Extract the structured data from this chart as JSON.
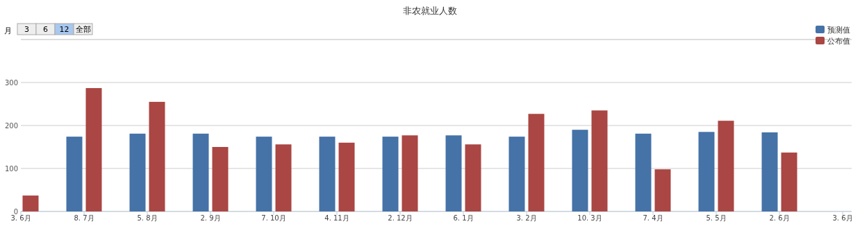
{
  "chart_data": {
    "type": "bar",
    "title": "非农就业人数",
    "categories": [
      "3. 6月",
      "8. 7月",
      "5. 8月",
      "2. 9月",
      "7. 10月",
      "4. 11月",
      "2. 12月",
      "6. 1月",
      "3. 2月",
      "10. 3月",
      "7. 4月",
      "5. 5月",
      "2. 6月",
      "3. 6月"
    ],
    "series": [
      {
        "name": "预测值",
        "color": "#4572a7",
        "values": [
          null,
          174,
          181,
          181,
          174,
          174,
          174,
          177,
          174,
          190,
          181,
          185,
          184,
          null
        ]
      },
      {
        "name": "公布值",
        "color": "#aa4643",
        "values": [
          37,
          287,
          255,
          150,
          156,
          160,
          177,
          156,
          227,
          235,
          98,
          211,
          137,
          null
        ]
      }
    ],
    "ylim": [
      0,
      400
    ],
    "yticks": [
      0,
      100,
      200,
      300,
      {
        "value": 400,
        "label": null
      }
    ],
    "grid": "y",
    "legend": "top right",
    "annotations": [
      "月",
      "3",
      "6",
      "12",
      "全部"
    ]
  }
}
